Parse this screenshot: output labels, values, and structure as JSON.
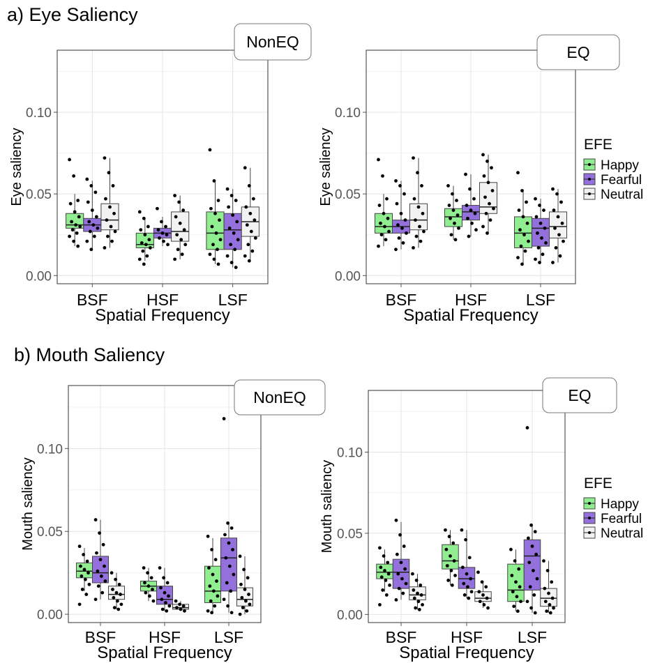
{
  "section_a_title": "a) Eye Saliency",
  "section_b_title": "b) Mouth Saliency",
  "legend": {
    "title": "EFE",
    "items": [
      {
        "label": "Happy",
        "color": "#90ee90"
      },
      {
        "label": "Fearful",
        "color": "#9370db"
      },
      {
        "label": "Neutral",
        "color": "#f2f2f2"
      }
    ]
  },
  "chart_data": [
    {
      "type": "boxplot",
      "panel": "NonEQ",
      "xlabel": "Spatial Frequency",
      "ylabel": "Eye saliency",
      "ylim": [
        -0.005,
        0.138
      ],
      "yticks": [
        "0.00",
        "0.05",
        "0.10"
      ],
      "categories": [
        "BSF",
        "HSF",
        "LSF"
      ],
      "series": [
        {
          "name": "Happy",
          "boxes": [
            {
              "q1": 0.029,
              "median": 0.031,
              "q3": 0.038,
              "lo": 0.018,
              "hi": 0.05
            },
            {
              "q1": 0.017,
              "median": 0.019,
              "q3": 0.026,
              "lo": 0.009,
              "hi": 0.035
            },
            {
              "q1": 0.016,
              "median": 0.026,
              "q3": 0.039,
              "lo": 0.007,
              "hi": 0.058
            }
          ],
          "points": [
            [
              0.071,
              0.061,
              0.046,
              0.044,
              0.039,
              0.036,
              0.033,
              0.031,
              0.03,
              0.028,
              0.026,
              0.024,
              0.021,
              0.018
            ],
            [
              0.039,
              0.035,
              0.03,
              0.028,
              0.025,
              0.022,
              0.02,
              0.019,
              0.017,
              0.015,
              0.012,
              0.01,
              0.007
            ],
            [
              0.077,
              0.058,
              0.046,
              0.041,
              0.038,
              0.034,
              0.03,
              0.026,
              0.022,
              0.019,
              0.016,
              0.013,
              0.01,
              0.007
            ]
          ]
        },
        {
          "name": "Fearful",
          "boxes": [
            {
              "q1": 0.027,
              "median": 0.031,
              "q3": 0.035,
              "lo": 0.016,
              "hi": 0.058
            },
            {
              "q1": 0.023,
              "median": 0.026,
              "q3": 0.029,
              "lo": 0.018,
              "hi": 0.036
            },
            {
              "q1": 0.016,
              "median": 0.028,
              "q3": 0.038,
              "lo": 0.005,
              "hi": 0.053
            }
          ],
          "points": [
            [
              0.059,
              0.055,
              0.051,
              0.045,
              0.04,
              0.036,
              0.033,
              0.031,
              0.029,
              0.027,
              0.024,
              0.021,
              0.016
            ],
            [
              0.041,
              0.033,
              0.03,
              0.028,
              0.026,
              0.025,
              0.023,
              0.021,
              0.019
            ],
            [
              0.053,
              0.049,
              0.046,
              0.042,
              0.037,
              0.033,
              0.029,
              0.026,
              0.022,
              0.019,
              0.016,
              0.012,
              0.008,
              0.005
            ]
          ]
        },
        {
          "name": "Neutral",
          "boxes": [
            {
              "q1": 0.028,
              "median": 0.034,
              "q3": 0.044,
              "lo": 0.017,
              "hi": 0.072
            },
            {
              "q1": 0.021,
              "median": 0.027,
              "q3": 0.039,
              "lo": 0.01,
              "hi": 0.049
            },
            {
              "q1": 0.024,
              "median": 0.033,
              "q3": 0.042,
              "lo": 0.009,
              "hi": 0.066
            }
          ],
          "points": [
            [
              0.072,
              0.063,
              0.055,
              0.047,
              0.042,
              0.038,
              0.034,
              0.03,
              0.027,
              0.024,
              0.021,
              0.017
            ],
            [
              0.049,
              0.045,
              0.04,
              0.036,
              0.032,
              0.028,
              0.025,
              0.022,
              0.019,
              0.016,
              0.013,
              0.01
            ],
            [
              0.066,
              0.055,
              0.047,
              0.042,
              0.038,
              0.034,
              0.031,
              0.027,
              0.023,
              0.019,
              0.015,
              0.012,
              0.009
            ]
          ]
        }
      ]
    },
    {
      "type": "boxplot",
      "panel": "EQ",
      "xlabel": "Spatial Frequency",
      "ylabel": "Eye saliency",
      "ylim": [
        -0.005,
        0.138
      ],
      "yticks": [
        "0.00",
        "0.05",
        "0.10"
      ],
      "categories": [
        "BSF",
        "HSF",
        "LSF"
      ],
      "series": [
        {
          "name": "Happy",
          "boxes": [
            {
              "q1": 0.026,
              "median": 0.03,
              "q3": 0.038,
              "lo": 0.018,
              "hi": 0.05
            },
            {
              "q1": 0.03,
              "median": 0.036,
              "q3": 0.041,
              "lo": 0.022,
              "hi": 0.055
            },
            {
              "q1": 0.017,
              "median": 0.026,
              "q3": 0.036,
              "lo": 0.007,
              "hi": 0.052
            }
          ],
          "points": [
            [
              0.071,
              0.061,
              0.047,
              0.043,
              0.038,
              0.035,
              0.032,
              0.03,
              0.027,
              0.025,
              0.022,
              0.018
            ],
            [
              0.055,
              0.05,
              0.046,
              0.043,
              0.04,
              0.037,
              0.035,
              0.032,
              0.029,
              0.025,
              0.022
            ],
            [
              0.063,
              0.052,
              0.045,
              0.04,
              0.036,
              0.032,
              0.028,
              0.025,
              0.021,
              0.018,
              0.015,
              0.011,
              0.007
            ]
          ]
        },
        {
          "name": "Fearful",
          "boxes": [
            {
              "q1": 0.026,
              "median": 0.03,
              "q3": 0.034,
              "lo": 0.016,
              "hi": 0.058
            },
            {
              "q1": 0.034,
              "median": 0.039,
              "q3": 0.043,
              "lo": 0.024,
              "hi": 0.062
            },
            {
              "q1": 0.018,
              "median": 0.029,
              "q3": 0.035,
              "lo": 0.008,
              "hi": 0.047
            }
          ],
          "points": [
            [
              0.058,
              0.055,
              0.05,
              0.044,
              0.038,
              0.034,
              0.031,
              0.029,
              0.026,
              0.023,
              0.02,
              0.016
            ],
            [
              0.062,
              0.053,
              0.047,
              0.043,
              0.04,
              0.038,
              0.035,
              0.032,
              0.028,
              0.024
            ],
            [
              0.047,
              0.043,
              0.04,
              0.036,
              0.032,
              0.029,
              0.026,
              0.023,
              0.02,
              0.017,
              0.013,
              0.01,
              0.008
            ]
          ]
        },
        {
          "name": "Neutral",
          "boxes": [
            {
              "q1": 0.028,
              "median": 0.034,
              "q3": 0.044,
              "lo": 0.017,
              "hi": 0.072
            },
            {
              "q1": 0.038,
              "median": 0.042,
              "q3": 0.057,
              "lo": 0.026,
              "hi": 0.074
            },
            {
              "q1": 0.023,
              "median": 0.03,
              "q3": 0.039,
              "lo": 0.008,
              "hi": 0.053
            }
          ],
          "points": [
            [
              0.072,
              0.063,
              0.055,
              0.047,
              0.042,
              0.038,
              0.034,
              0.03,
              0.027,
              0.024,
              0.021,
              0.017
            ],
            [
              0.074,
              0.07,
              0.066,
              0.061,
              0.057,
              0.052,
              0.048,
              0.044,
              0.041,
              0.038,
              0.034,
              0.03,
              0.026
            ],
            [
              0.053,
              0.05,
              0.045,
              0.04,
              0.036,
              0.032,
              0.029,
              0.025,
              0.021,
              0.017,
              0.012,
              0.008
            ]
          ]
        }
      ]
    },
    {
      "type": "boxplot",
      "panel": "NonEQ",
      "xlabel": "Spatial Frequency",
      "ylabel": "Mouth saliency",
      "ylim": [
        -0.005,
        0.138
      ],
      "yticks": [
        "0.00",
        "0.05",
        "0.10"
      ],
      "categories": [
        "BSF",
        "HSF",
        "LSF"
      ],
      "series": [
        {
          "name": "Happy",
          "boxes": [
            {
              "q1": 0.022,
              "median": 0.026,
              "q3": 0.031,
              "lo": 0.014,
              "hi": 0.04
            },
            {
              "q1": 0.014,
              "median": 0.017,
              "q3": 0.02,
              "lo": 0.008,
              "hi": 0.028
            },
            {
              "q1": 0.007,
              "median": 0.014,
              "q3": 0.029,
              "lo": 0.001,
              "hi": 0.046
            }
          ],
          "points": [
            [
              0.041,
              0.036,
              0.032,
              0.029,
              0.027,
              0.025,
              0.023,
              0.021,
              0.018,
              0.015,
              0.012,
              0.006
            ],
            [
              0.028,
              0.025,
              0.022,
              0.019,
              0.017,
              0.015,
              0.013,
              0.011,
              0.008
            ],
            [
              0.047,
              0.039,
              0.033,
              0.028,
              0.024,
              0.02,
              0.017,
              0.014,
              0.011,
              0.008,
              0.005,
              0.002,
              0.001
            ]
          ]
        },
        {
          "name": "Fearful",
          "boxes": [
            {
              "q1": 0.019,
              "median": 0.025,
              "q3": 0.035,
              "lo": 0.009,
              "hi": 0.057
            },
            {
              "q1": 0.006,
              "median": 0.009,
              "q3": 0.017,
              "lo": 0.002,
              "hi": 0.028
            },
            {
              "q1": 0.014,
              "median": 0.034,
              "q3": 0.046,
              "lo": 0.001,
              "hi": 0.055
            }
          ],
          "points": [
            [
              0.057,
              0.049,
              0.042,
              0.037,
              0.033,
              0.029,
              0.026,
              0.023,
              0.02,
              0.017,
              0.013,
              0.009
            ],
            [
              0.028,
              0.022,
              0.019,
              0.016,
              0.013,
              0.011,
              0.009,
              0.007,
              0.005,
              0.003,
              0.002
            ],
            [
              0.118,
              0.055,
              0.052,
              0.048,
              0.043,
              0.039,
              0.034,
              0.029,
              0.024,
              0.019,
              0.014,
              0.009,
              0.005,
              0.001
            ]
          ]
        },
        {
          "name": "Neutral",
          "boxes": [
            {
              "q1": 0.009,
              "median": 0.012,
              "q3": 0.017,
              "lo": 0.003,
              "hi": 0.025
            },
            {
              "q1": 0.003,
              "median": 0.004,
              "q3": 0.006,
              "lo": 0.002,
              "hi": 0.008
            },
            {
              "q1": 0.005,
              "median": 0.009,
              "q3": 0.016,
              "lo": 0.0,
              "hi": 0.035
            }
          ],
          "points": [
            [
              0.025,
              0.021,
              0.018,
              0.015,
              0.013,
              0.012,
              0.01,
              0.008,
              0.006,
              0.004,
              0.003
            ],
            [
              0.008,
              0.006,
              0.005,
              0.004,
              0.003,
              0.002
            ],
            [
              0.035,
              0.027,
              0.022,
              0.018,
              0.015,
              0.012,
              0.01,
              0.008,
              0.006,
              0.004,
              0.002,
              0.0
            ]
          ]
        }
      ]
    },
    {
      "type": "boxplot",
      "panel": "EQ",
      "xlabel": "Spatial Frequency",
      "ylabel": "Mouth saliency",
      "ylim": [
        -0.005,
        0.138
      ],
      "yticks": [
        "0.00",
        "0.05",
        "0.10"
      ],
      "categories": [
        "BSF",
        "HSF",
        "LSF"
      ],
      "series": [
        {
          "name": "Happy",
          "boxes": [
            {
              "q1": 0.022,
              "median": 0.026,
              "q3": 0.031,
              "lo": 0.014,
              "hi": 0.04
            },
            {
              "q1": 0.028,
              "median": 0.033,
              "q3": 0.043,
              "lo": 0.018,
              "hi": 0.052
            },
            {
              "q1": 0.008,
              "median": 0.015,
              "q3": 0.031,
              "lo": 0.002,
              "hi": 0.04
            }
          ],
          "points": [
            [
              0.041,
              0.036,
              0.032,
              0.029,
              0.027,
              0.025,
              0.023,
              0.021,
              0.018,
              0.015,
              0.012,
              0.006
            ],
            [
              0.052,
              0.048,
              0.044,
              0.04,
              0.036,
              0.033,
              0.03,
              0.027,
              0.024,
              0.021,
              0.018
            ],
            [
              0.04,
              0.033,
              0.028,
              0.024,
              0.02,
              0.017,
              0.014,
              0.011,
              0.008,
              0.005,
              0.002
            ]
          ]
        },
        {
          "name": "Fearful",
          "boxes": [
            {
              "q1": 0.016,
              "median": 0.026,
              "q3": 0.034,
              "lo": 0.009,
              "hi": 0.057
            },
            {
              "q1": 0.016,
              "median": 0.022,
              "q3": 0.029,
              "lo": 0.01,
              "hi": 0.052
            },
            {
              "q1": 0.015,
              "median": 0.036,
              "q3": 0.046,
              "lo": 0.001,
              "hi": 0.055
            }
          ],
          "points": [
            [
              0.058,
              0.049,
              0.042,
              0.037,
              0.032,
              0.028,
              0.025,
              0.022,
              0.019,
              0.016,
              0.013,
              0.009
            ],
            [
              0.052,
              0.046,
              0.035,
              0.029,
              0.025,
              0.022,
              0.019,
              0.017,
              0.014,
              0.012,
              0.01
            ],
            [
              0.115,
              0.055,
              0.051,
              0.047,
              0.042,
              0.037,
              0.032,
              0.027,
              0.022,
              0.017,
              0.012,
              0.008,
              0.004,
              0.001
            ]
          ]
        },
        {
          "name": "Neutral",
          "boxes": [
            {
              "q1": 0.009,
              "median": 0.012,
              "q3": 0.017,
              "lo": 0.003,
              "hi": 0.025
            },
            {
              "q1": 0.008,
              "median": 0.01,
              "q3": 0.014,
              "lo": 0.004,
              "hi": 0.02
            },
            {
              "q1": 0.005,
              "median": 0.01,
              "q3": 0.016,
              "lo": 0.001,
              "hi": 0.033
            }
          ],
          "points": [
            [
              0.025,
              0.021,
              0.018,
              0.015,
              0.013,
              0.012,
              0.01,
              0.008,
              0.006,
              0.004,
              0.003
            ],
            [
              0.026,
              0.02,
              0.017,
              0.014,
              0.012,
              0.01,
              0.008,
              0.006,
              0.004
            ],
            [
              0.033,
              0.027,
              0.02,
              0.016,
              0.013,
              0.01,
              0.008,
              0.006,
              0.004,
              0.002,
              0.001
            ]
          ]
        }
      ]
    }
  ]
}
